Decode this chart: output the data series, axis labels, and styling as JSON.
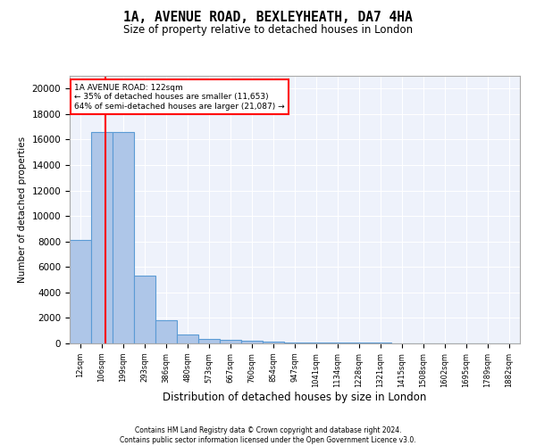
{
  "title1": "1A, AVENUE ROAD, BEXLEYHEATH, DA7 4HA",
  "title2": "Size of property relative to detached houses in London",
  "xlabel": "Distribution of detached houses by size in London",
  "ylabel": "Number of detached properties",
  "categories": [
    "12sqm",
    "106sqm",
    "199sqm",
    "293sqm",
    "386sqm",
    "480sqm",
    "573sqm",
    "667sqm",
    "760sqm",
    "854sqm",
    "947sqm",
    "1041sqm",
    "1134sqm",
    "1228sqm",
    "1321sqm",
    "1415sqm",
    "1508sqm",
    "1602sqm",
    "1695sqm",
    "1789sqm",
    "1882sqm"
  ],
  "bar_data": [
    8100,
    16600,
    16600,
    5300,
    1800,
    700,
    350,
    250,
    200,
    150,
    100,
    80,
    60,
    50,
    40,
    30,
    25,
    20,
    15,
    10,
    5
  ],
  "bar_color": "#aec6e8",
  "bar_edge_color": "#5b9bd5",
  "property_label": "1A AVENUE ROAD: 122sqm",
  "annotation_line1": "← 35% of detached houses are smaller (11,653)",
  "annotation_line2": "64% of semi-detached houses are larger (21,087) →",
  "annotation_box_color": "white",
  "annotation_border_color": "red",
  "vline_color": "red",
  "ylim": [
    0,
    21000
  ],
  "yticks": [
    0,
    2000,
    4000,
    6000,
    8000,
    10000,
    12000,
    14000,
    16000,
    18000,
    20000
  ],
  "footer1": "Contains HM Land Registry data © Crown copyright and database right 2024.",
  "footer2": "Contains public sector information licensed under the Open Government Licence v3.0.",
  "background_color": "#eef2fb"
}
